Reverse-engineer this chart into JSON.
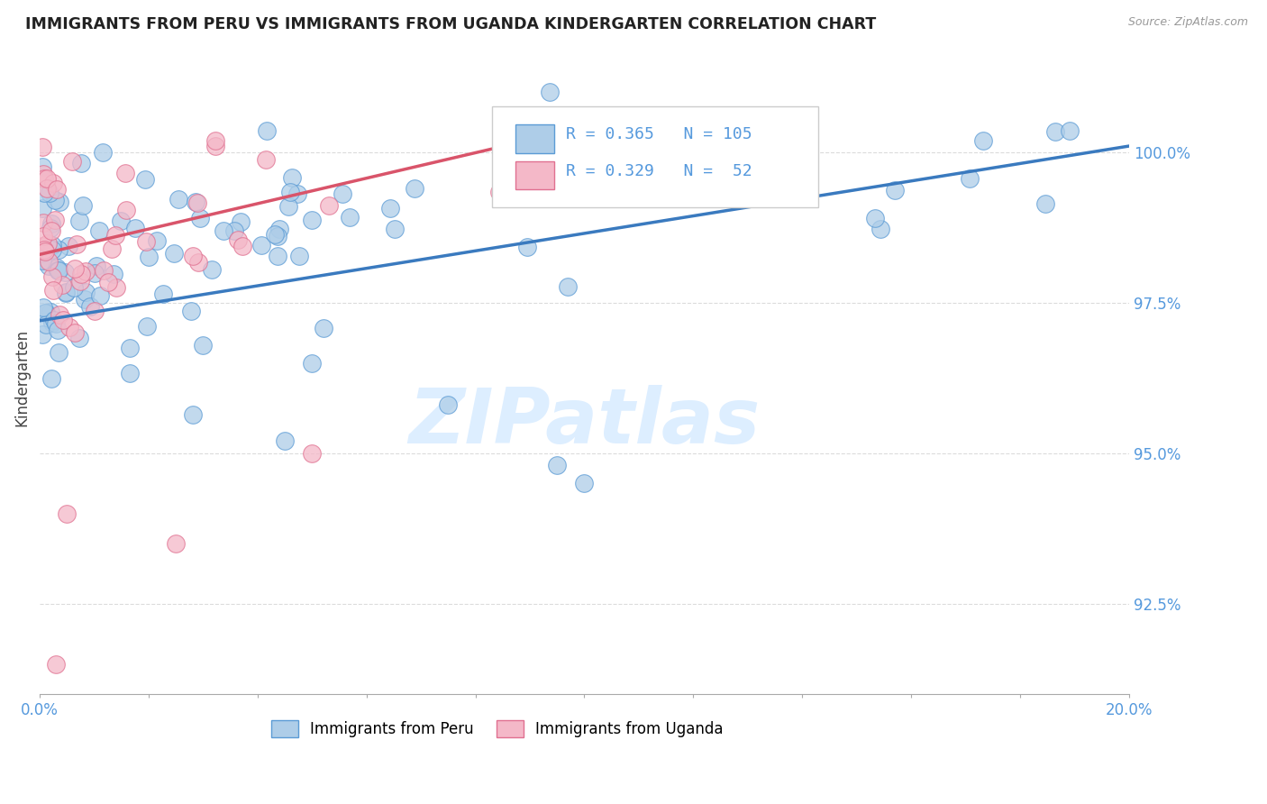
{
  "title": "IMMIGRANTS FROM PERU VS IMMIGRANTS FROM UGANDA KINDERGARTEN CORRELATION CHART",
  "source": "Source: ZipAtlas.com",
  "ylabel": "Kindergarten",
  "xlim": [
    0.0,
    20.0
  ],
  "ylim": [
    91.0,
    101.5
  ],
  "yticks": [
    92.5,
    95.0,
    97.5,
    100.0
  ],
  "ytick_labels": [
    "92.5%",
    "95.0%",
    "97.5%",
    "100.0%"
  ],
  "legend_blue_r": "R = 0.365",
  "legend_blue_n": "N = 105",
  "legend_pink_r": "R = 0.329",
  "legend_pink_n": "N =  52",
  "color_blue_fill": "#aecde8",
  "color_blue_edge": "#5b9bd5",
  "color_pink_fill": "#f4b8c8",
  "color_pink_edge": "#e07090",
  "color_line_blue": "#3a7abf",
  "color_line_pink": "#d9546a",
  "color_axis_labels": "#5599dd",
  "color_title": "#222222",
  "watermark_color": "#ddeeff",
  "blue_trend_x0": 0.0,
  "blue_trend_y0": 97.2,
  "blue_trend_x1": 20.0,
  "blue_trend_y1": 100.1,
  "pink_trend_x0": 0.0,
  "pink_trend_y0": 98.3,
  "pink_trend_x1": 9.0,
  "pink_trend_y1": 100.2
}
